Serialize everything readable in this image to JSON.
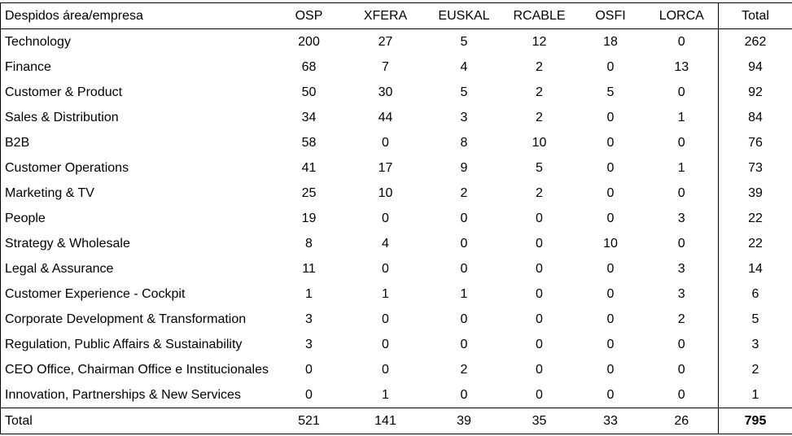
{
  "table": {
    "headers": [
      "Despidos área/empresa",
      "OSP",
      "XFERA",
      "EUSKAL",
      "RCABLE",
      "OSFI",
      "LORCA",
      "Total"
    ],
    "rows": [
      [
        "Technology",
        "200",
        "27",
        "5",
        "12",
        "18",
        "0",
        "262"
      ],
      [
        "Finance",
        "68",
        "7",
        "4",
        "2",
        "0",
        "13",
        "94"
      ],
      [
        "Customer & Product",
        "50",
        "30",
        "5",
        "2",
        "5",
        "0",
        "92"
      ],
      [
        "Sales & Distribution",
        "34",
        "44",
        "3",
        "2",
        "0",
        "1",
        "84"
      ],
      [
        "B2B",
        "58",
        "0",
        "8",
        "10",
        "0",
        "0",
        "76"
      ],
      [
        "Customer Operations",
        "41",
        "17",
        "9",
        "5",
        "0",
        "1",
        "73"
      ],
      [
        "Marketing & TV",
        "25",
        "10",
        "2",
        "2",
        "0",
        "0",
        "39"
      ],
      [
        "People",
        "19",
        "0",
        "0",
        "0",
        "0",
        "3",
        "22"
      ],
      [
        "Strategy & Wholesale",
        "8",
        "4",
        "0",
        "0",
        "10",
        "0",
        "22"
      ],
      [
        "Legal & Assurance",
        "11",
        "0",
        "0",
        "0",
        "0",
        "3",
        "14"
      ],
      [
        "Customer Experience - Cockpit",
        "1",
        "1",
        "1",
        "0",
        "0",
        "3",
        "6"
      ],
      [
        "Corporate Development & Transformation",
        "3",
        "0",
        "0",
        "0",
        "0",
        "2",
        "5"
      ],
      [
        "Regulation, Public Affairs & Sustainability",
        "3",
        "0",
        "0",
        "0",
        "0",
        "0",
        "3"
      ],
      [
        "CEO Office, Chairman Office e Institucionales",
        "0",
        "0",
        "2",
        "0",
        "0",
        "0",
        "2"
      ],
      [
        "Innovation, Partnerships & New Services",
        "0",
        "1",
        "0",
        "0",
        "0",
        "0",
        "1"
      ]
    ],
    "totals": [
      "Total",
      "521",
      "141",
      "39",
      "35",
      "33",
      "26",
      "795"
    ]
  }
}
